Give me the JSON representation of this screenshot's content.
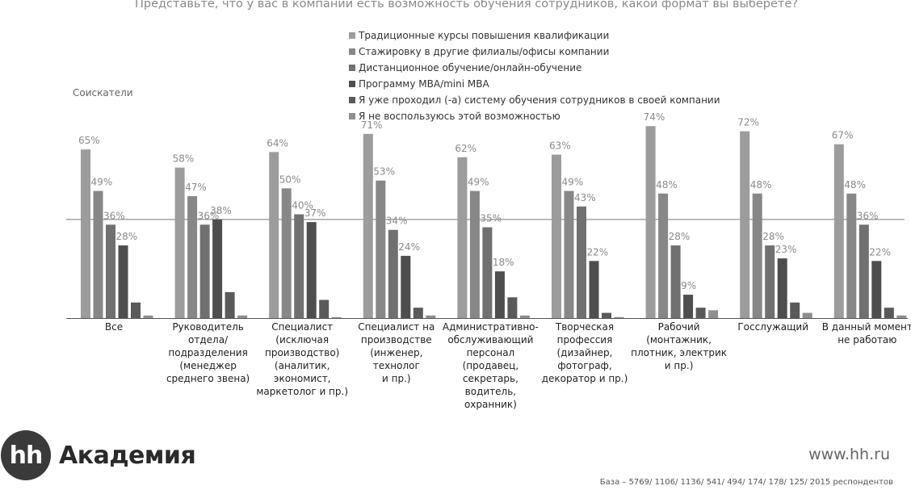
{
  "page": {
    "subtitle": "Соискатели",
    "website": "www.hh.ru",
    "base_note": "База – 5769/ 1106/ 1136/ 541/ 494/ 174/ 178/ 125/ 2015 респондентов",
    "logo": {
      "mark": "hh",
      "text": "Академия"
    }
  },
  "chart_data": {
    "type": "bar",
    "title": "Представьте, что у вас в компании есть возможность обучения сотрудников, какой формат вы выберете?",
    "categories": [
      "Все",
      "Руководитель\nотдела/\nподразделения\n(менеджер\nсреднего звена)",
      "Специалист\n(исключая\nпроизводство)\n(аналитик,\nэкономист,\nмаркетолог и пр.)",
      "Специалист на\nпроизводстве\n(инженер, технолог\nи пр.)",
      "Административно-\nобслуживающий\nперсонал\n(продавец,\nсекретарь,\nводитель,\nохранник)",
      "Творческая\nпрофессия\n(дизайнер,\nфотограф,\nдекоратор и пр.)",
      "Рабочий\n(монтажник,\nплотник, электрик\nи пр.)",
      "Госслужащий",
      "В данный момент\nне работаю"
    ],
    "series": [
      {
        "name": "Традиционные курсы повышения квалификации",
        "color": "#9c9c9c",
        "values": [
          65,
          58,
          64,
          71,
          62,
          63,
          74,
          72,
          67
        ]
      },
      {
        "name": "Стажировку в другие филиалы/офисы компании",
        "color": "#878787",
        "values": [
          49,
          47,
          50,
          53,
          49,
          49,
          48,
          48,
          48
        ]
      },
      {
        "name": "Дистанционное обучение/онлайн-обучение",
        "color": "#707070",
        "values": [
          36,
          36,
          40,
          34,
          35,
          43,
          28,
          28,
          36
        ]
      },
      {
        "name": "Программу MBA/mini MBA",
        "color": "#4e4e4e",
        "values": [
          28,
          38,
          37,
          24,
          18,
          22,
          9,
          23,
          22
        ]
      },
      {
        "name": "Я уже проходил (-а) систему обучения сотрудников в своей компании",
        "color": "#5a5a5a",
        "values": [
          6,
          10,
          7,
          4,
          8,
          2,
          4,
          6,
          4
        ]
      },
      {
        "name": "Я не воспользуюсь этой возможностью",
        "color": "#8f8f8f",
        "values": [
          1,
          1,
          0,
          1,
          1,
          0,
          3,
          2,
          1
        ]
      }
    ],
    "value_labels": [
      [
        "65%",
        "49%",
        "36%",
        "28%",
        "",
        ""
      ],
      [
        "58%",
        "47%",
        "36%",
        "38%",
        "",
        ""
      ],
      [
        "64%",
        "50%",
        "40%",
        "37%",
        "",
        ""
      ],
      [
        "71%",
        "53%",
        "34%",
        "24%",
        "",
        ""
      ],
      [
        "62%",
        "49%",
        "35%",
        "18%",
        "",
        ""
      ],
      [
        "63%",
        "49%",
        "43%",
        "22%",
        "",
        ""
      ],
      [
        "74%",
        "48%",
        "28%",
        "9%",
        "",
        ""
      ],
      [
        "72%",
        "48%",
        "28%",
        "23%",
        "",
        ""
      ],
      [
        "67%",
        "48%",
        "36%",
        "22%",
        "",
        ""
      ]
    ],
    "ylim": [
      0,
      100
    ],
    "reference_line": 38,
    "xlabel": "",
    "ylabel": "",
    "legend_position": "top-center"
  }
}
